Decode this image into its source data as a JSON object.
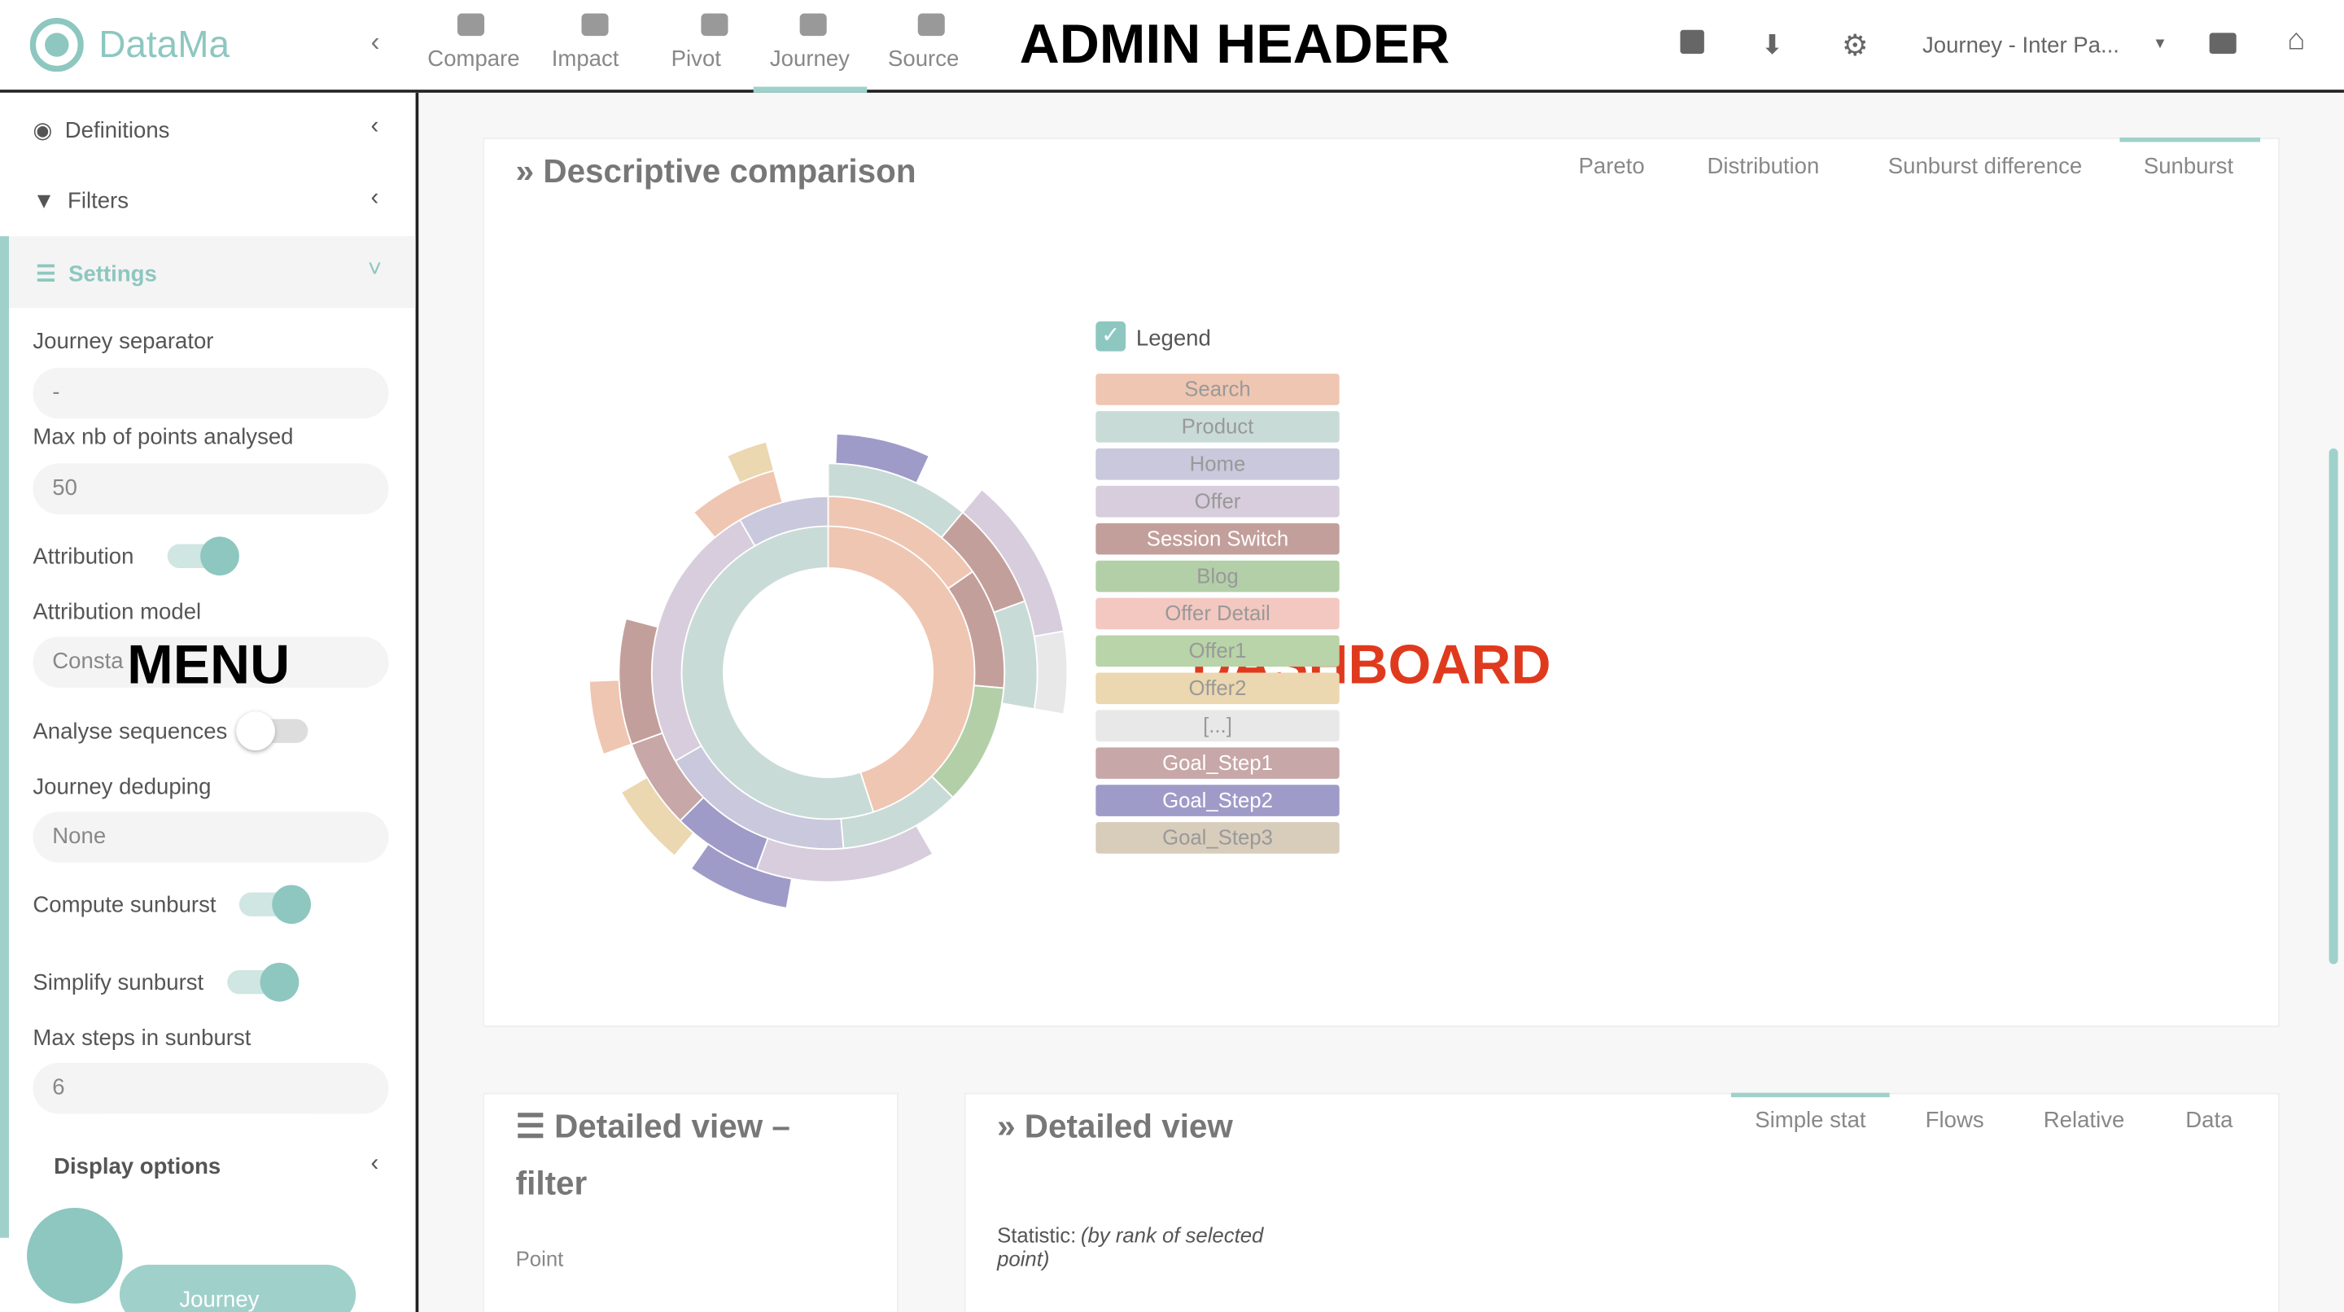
{
  "header": {
    "logo": "DataMa",
    "nav": [
      "Compare",
      "Impact",
      "Pivot",
      "Journey",
      "Source"
    ],
    "overlay": "ADMIN HEADER",
    "project": "Journey - Inter Pa..."
  },
  "menu": {
    "sections": [
      "Definitions",
      "Filters",
      "Settings"
    ],
    "journey_separator": {
      "label": "Journey separator",
      "value": "-"
    },
    "max_points": {
      "label": "Max nb of points analysed",
      "value": "50"
    },
    "attribution": "Attribution",
    "attribution_model": {
      "label": "Attribution model",
      "value": "Consta"
    },
    "overlay": "MENU",
    "analyse_sequences": "Analyse sequences",
    "journey_deduping": {
      "label": "Journey deduping",
      "value": "None"
    },
    "compute_sunburst": "Compute sunburst",
    "simplify_sunburst": "Simplify sunburst",
    "max_steps": {
      "label": "Max steps in sunburst",
      "value": "6"
    },
    "display_options": "Display options",
    "journey_button": "Journey"
  },
  "dashboard": {
    "title": "Descriptive comparison",
    "tabs": [
      "Pareto",
      "Distribution",
      "Sunburst difference",
      "Sunburst"
    ],
    "legend_title": "Legend",
    "legend": [
      {
        "name": "Search",
        "color": "#efc6b2"
      },
      {
        "name": "Product",
        "color": "#c9dbd7"
      },
      {
        "name": "Home",
        "color": "#c9c8dc"
      },
      {
        "name": "Offer",
        "color": "#d7cddc"
      },
      {
        "name": "Session Switch",
        "color": "#c39f9b"
      },
      {
        "name": "Blog",
        "color": "#b3cfa8"
      },
      {
        "name": "Offer Detail",
        "color": "#f3c8c0"
      },
      {
        "name": "Offer1",
        "color": "#b8d4a8"
      },
      {
        "name": "Offer2",
        "color": "#ebd7b0"
      },
      {
        "name": "[...]",
        "color": "#e8e8e8"
      },
      {
        "name": "Goal_Step1",
        "color": "#c7a7a7"
      },
      {
        "name": "Goal_Step2",
        "color": "#9f9bc8"
      },
      {
        "name": "Goal_Step3",
        "color": "#d8ccbb"
      }
    ],
    "overlay": "DASHBOARD"
  },
  "filter_panel": {
    "title_line1": "Detailed view –",
    "title_line2": "filter",
    "point": "Point"
  },
  "detail_panel": {
    "title": "Detailed view",
    "tabs": [
      "Simple stat",
      "Flows",
      "Relative",
      "Data"
    ],
    "statistic": "Statistic:",
    "statistic_note": "(by rank of selected point)"
  }
}
